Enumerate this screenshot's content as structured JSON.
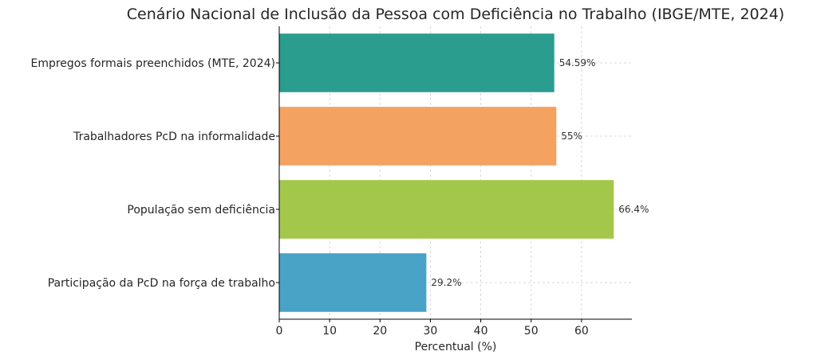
{
  "chart_data": {
    "type": "bar",
    "orientation": "horizontal",
    "title": "Cenário Nacional de Inclusão da Pessoa com Deficiência no Trabalho (IBGE/MTE, 2024)",
    "xlabel": "Percentual (%)",
    "ylabel": "",
    "xlim": [
      0,
      70
    ],
    "xticks": [
      0,
      10,
      20,
      30,
      40,
      50,
      60
    ],
    "grid": true,
    "categories": [
      "Empregos formais preenchidos (MTE, 2024)",
      "Trabalhadores PcD na informalidade",
      "População sem deficiência",
      "Participação da PcD na força de trabalho"
    ],
    "values": [
      54.59,
      55,
      66.4,
      29.2
    ],
    "value_labels": [
      "54.59%",
      "55%",
      "66.4%",
      "29.2%"
    ],
    "colors": [
      "#2a9d8f",
      "#f4a261",
      "#a3c74a",
      "#48a3c6"
    ]
  }
}
